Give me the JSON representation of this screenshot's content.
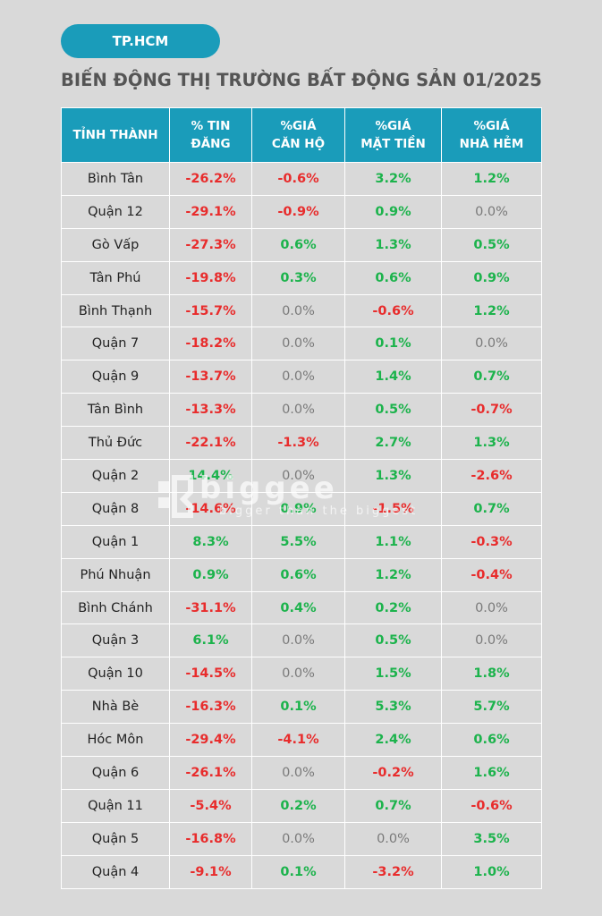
{
  "badge": "TP.HCM",
  "title": "BIẾN ĐỘNG THỊ TRƯỜNG BẤT ĐỘNG SẢN 01/2025",
  "headers": [
    [
      "TỈNH THÀNH",
      ""
    ],
    [
      "% TIN",
      "ĐĂNG"
    ],
    [
      "%GIÁ",
      "CĂN HỘ"
    ],
    [
      "%GIÁ",
      "MẶT TIỀN"
    ],
    [
      "%GIÁ",
      "NHÀ HẺM"
    ]
  ],
  "rows": [
    [
      "Bình Tân",
      "-26.2%",
      "-0.6%",
      "3.2%",
      "1.2%"
    ],
    [
      "Quận 12",
      "-29.1%",
      "-0.9%",
      "0.9%",
      "0.0%"
    ],
    [
      "Gò Vấp",
      "-27.3%",
      "0.6%",
      "1.3%",
      "0.5%"
    ],
    [
      "Tân Phú",
      "-19.8%",
      "0.3%",
      "0.6%",
      "0.9%"
    ],
    [
      "Bình Thạnh",
      "-15.7%",
      "0.0%",
      "-0.6%",
      "1.2%"
    ],
    [
      "Quận 7",
      "-18.2%",
      "0.0%",
      "0.1%",
      "0.0%"
    ],
    [
      "Quận 9",
      "-13.7%",
      "0.0%",
      "1.4%",
      "0.7%"
    ],
    [
      "Tân Bình",
      "-13.3%",
      "0.0%",
      "0.5%",
      "-0.7%"
    ],
    [
      "Thủ Đức",
      "-22.1%",
      "-1.3%",
      "2.7%",
      "1.3%"
    ],
    [
      "Quận 2",
      "14.4%",
      "0.0%",
      "1.3%",
      "-2.6%"
    ],
    [
      "Quận 8",
      "-14.6%",
      "0.9%",
      "-1.5%",
      "0.7%"
    ],
    [
      "Quận 1",
      "8.3%",
      "5.5%",
      "1.1%",
      "-0.3%"
    ],
    [
      "Phú Nhuận",
      "0.9%",
      "0.6%",
      "1.2%",
      "-0.4%"
    ],
    [
      "Bình Chánh",
      "-31.1%",
      "0.4%",
      "0.2%",
      "0.0%"
    ],
    [
      "Quận 3",
      "6.1%",
      "0.0%",
      "0.5%",
      "0.0%"
    ],
    [
      "Quận 10",
      "-14.5%",
      "0.0%",
      "1.5%",
      "1.8%"
    ],
    [
      "Nhà Bè",
      "-16.3%",
      "0.1%",
      "5.3%",
      "5.7%"
    ],
    [
      "Hóc Môn",
      "-29.4%",
      "-4.1%",
      "2.4%",
      "0.6%"
    ],
    [
      "Quận 6",
      "-26.1%",
      "0.0%",
      "-0.2%",
      "1.6%"
    ],
    [
      "Quận 11",
      "-5.4%",
      "0.2%",
      "0.7%",
      "-0.6%"
    ],
    [
      "Quận 5",
      "-16.8%",
      "0.0%",
      "0.0%",
      "3.5%"
    ],
    [
      "Quận 4",
      "-9.1%",
      "0.1%",
      "-3.2%",
      "1.0%"
    ]
  ],
  "watermark": {
    "brand": "biggee",
    "tagline": "bigger than the biggest"
  },
  "colors": {
    "accent": "#1a9cba",
    "negative": "#e82c2c",
    "positive": "#1cb34c",
    "neutral": "#7a7a7a",
    "background": "#d9d9d9"
  }
}
